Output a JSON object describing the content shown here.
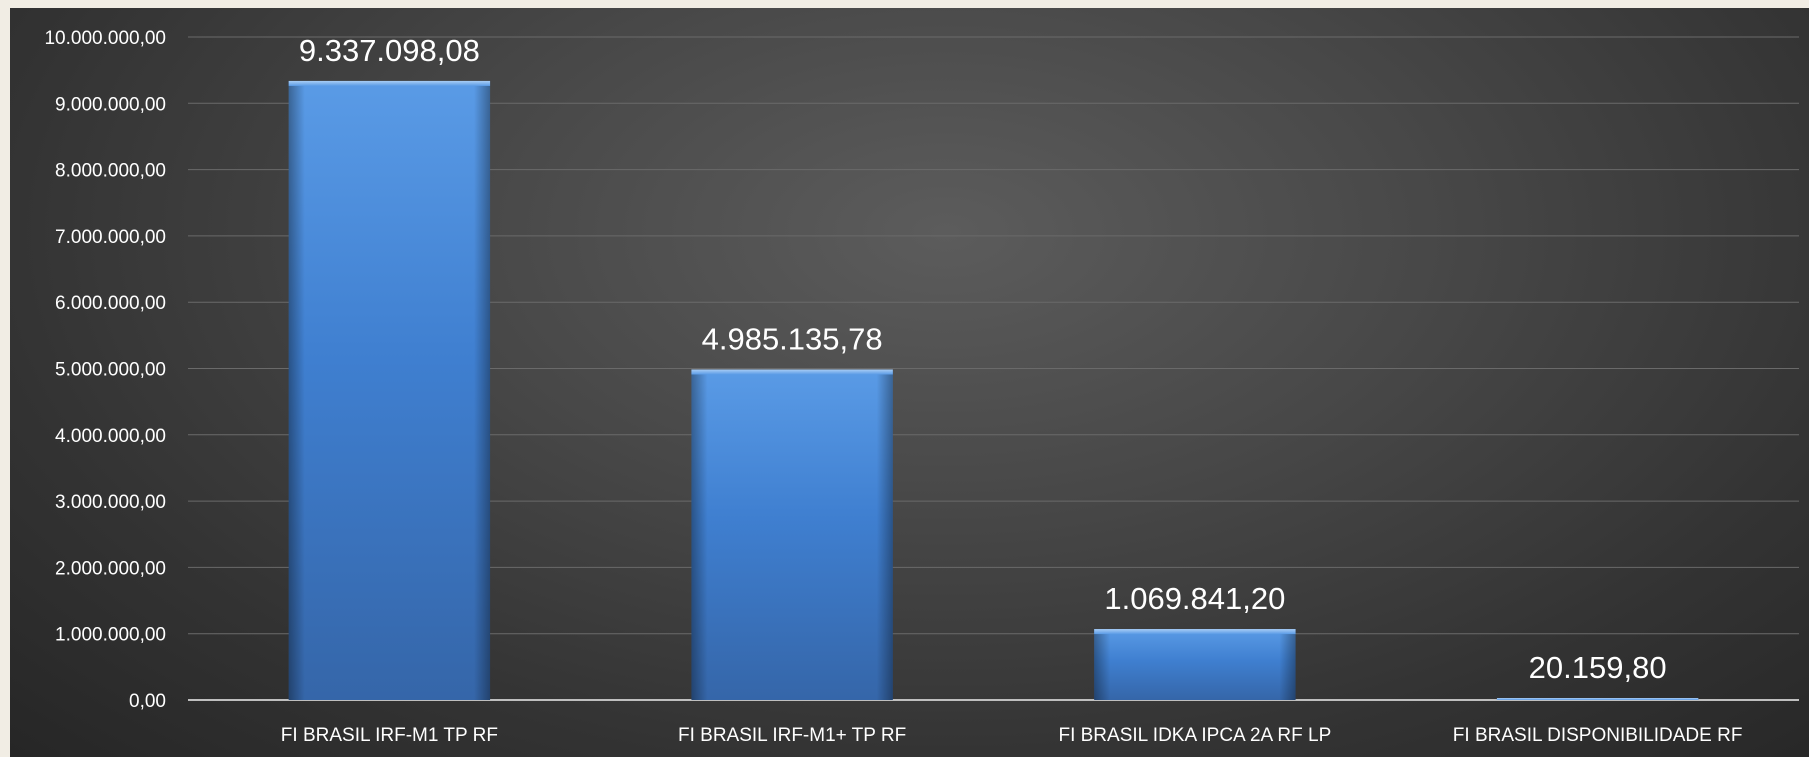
{
  "chart_data": {
    "type": "bar",
    "title": "",
    "xlabel": "",
    "ylabel": "",
    "categories": [
      "FI BRASIL IRF-M1 TP RF",
      "FI BRASIL IRF-M1+ TP RF",
      "FI BRASIL IDKA IPCA 2A RF LP",
      "FI BRASIL DISPONIBILIDADE RF"
    ],
    "values": [
      9337098.08,
      4985135.78,
      1069841.2,
      20159.8
    ],
    "data_labels": [
      "9.337.098,08",
      "4.985.135,78",
      "1.069.841,20",
      "20.159,80"
    ],
    "ylim": [
      0,
      10000000
    ],
    "yticks": [
      0,
      1000000,
      2000000,
      3000000,
      4000000,
      5000000,
      6000000,
      7000000,
      8000000,
      9000000,
      10000000
    ],
    "ytick_labels": [
      "0,00",
      "1.000.000,00",
      "2.000.000,00",
      "3.000.000,00",
      "4.000.000,00",
      "5.000.000,00",
      "6.000.000,00",
      "7.000.000,00",
      "8.000.000,00",
      "9.000.000,00",
      "10.000.000,00"
    ],
    "grid": true,
    "legend": "none",
    "colors": {
      "bar": "#3f7fd0",
      "bar_top": "#5a9be6",
      "bar_bottom": "#3566a9",
      "background_center": "#5c5c5c",
      "background_edge": "#262626",
      "gridline": "#6a6a6a",
      "text": "#ffffff"
    }
  }
}
